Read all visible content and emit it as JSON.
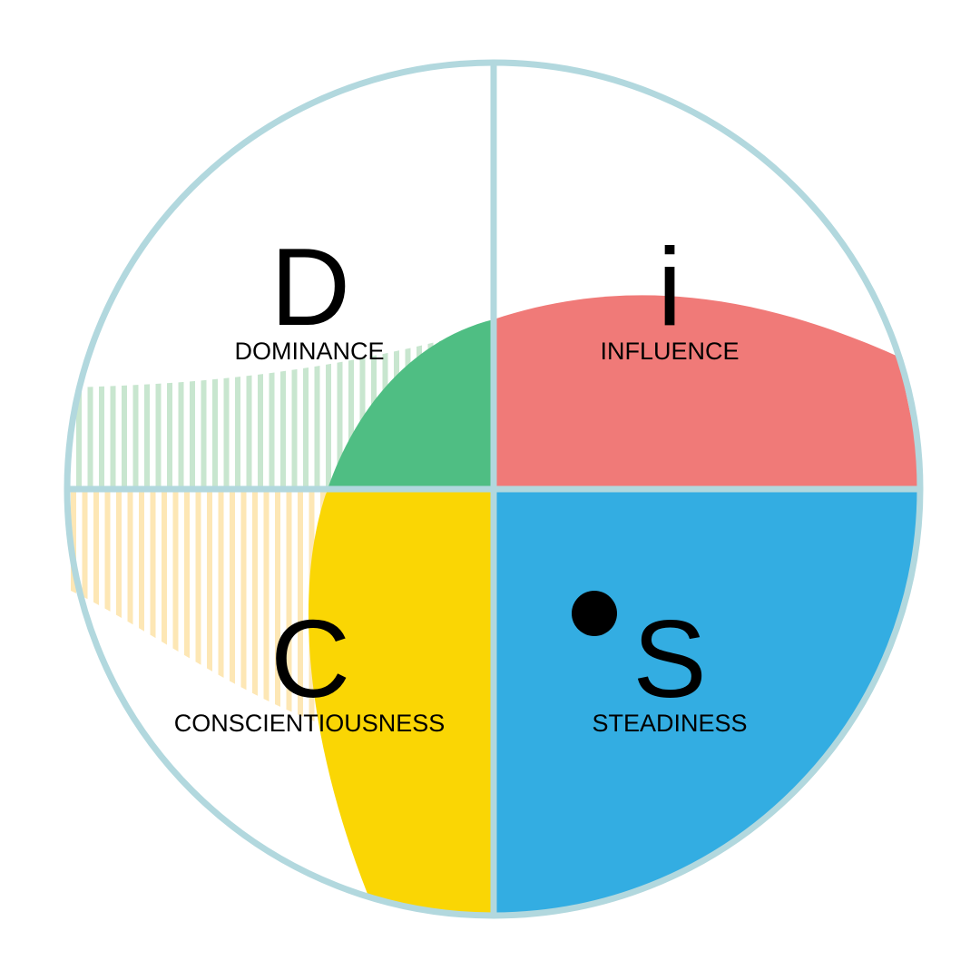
{
  "quadrants": {
    "d": {
      "letter": "D",
      "label": "DOMINANCE",
      "color": "#4fbe83",
      "hatch_color": "#c8e6cf"
    },
    "i": {
      "letter": "i",
      "label": "INFLUENCE",
      "color": "#f07a78"
    },
    "s": {
      "letter": "S",
      "label": "STEADINESS",
      "color": "#33ade2"
    },
    "c": {
      "letter": "C",
      "label": "CONSCIENTIOUSNESS",
      "color": "#fad604",
      "hatch_color": "#fde7b5"
    }
  },
  "ring_color": "#b2d8de",
  "marker": {
    "name": "position-dot",
    "color": "#000000"
  }
}
